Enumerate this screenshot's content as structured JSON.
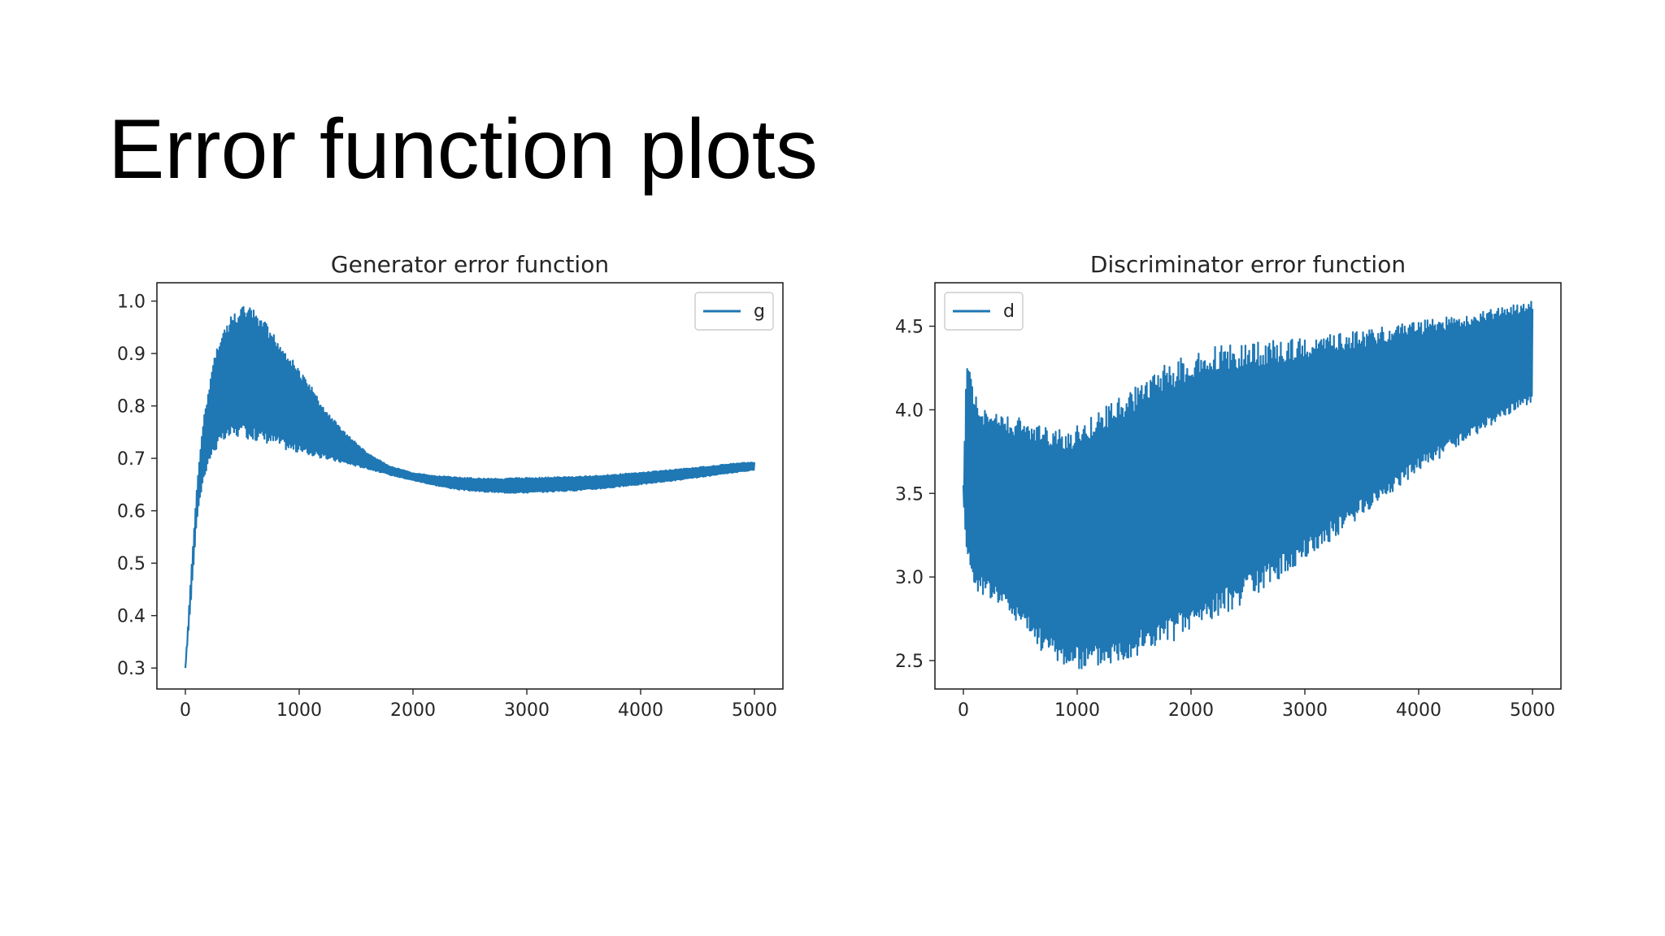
{
  "slide": {
    "title": "Error function plots"
  },
  "chart_data": [
    {
      "type": "line",
      "title": "Generator error function",
      "xlabel": "",
      "ylabel": "",
      "xlim": [
        -250,
        5250
      ],
      "ylim": [
        0.26,
        1.035
      ],
      "x_ticks": [
        "0",
        "1000",
        "2000",
        "3000",
        "4000",
        "5000"
      ],
      "y_ticks": [
        "0.3",
        "0.4",
        "0.5",
        "0.6",
        "0.7",
        "0.8",
        "0.9",
        "1.0"
      ],
      "legend_position": "upper-right",
      "grid": false,
      "series": [
        {
          "name": "g",
          "color": "#1f77b4",
          "upper_envelope": {
            "x": [
              0,
              50,
              100,
              150,
              200,
              250,
              300,
              400,
              500,
              600,
              700,
              800,
              900,
              1000,
              1100,
              1200,
              1400,
              1600,
              1800,
              2000,
              2200,
              2400,
              2600,
              2800,
              3000,
              3200,
              3400,
              3600,
              3800,
              4000,
              4200,
              4400,
              4600,
              4800,
              5000
            ],
            "y": [
              0.3,
              0.48,
              0.64,
              0.76,
              0.83,
              0.89,
              0.93,
              0.97,
              0.99,
              0.985,
              0.96,
              0.93,
              0.9,
              0.87,
              0.84,
              0.8,
              0.75,
              0.71,
              0.685,
              0.672,
              0.667,
              0.664,
              0.662,
              0.662,
              0.663,
              0.664,
              0.665,
              0.667,
              0.67,
              0.673,
              0.677,
              0.681,
              0.685,
              0.69,
              0.693
            ]
          },
          "lower_envelope": {
            "x": [
              0,
              50,
              100,
              150,
              200,
              250,
              300,
              400,
              500,
              600,
              700,
              800,
              900,
              1000,
              1100,
              1200,
              1400,
              1600,
              1800,
              2000,
              2200,
              2400,
              2600,
              2800,
              3000,
              3200,
              3400,
              3600,
              3800,
              4000,
              4200,
              4400,
              4600,
              4800,
              5000
            ],
            "y": [
              0.3,
              0.43,
              0.58,
              0.65,
              0.69,
              0.71,
              0.725,
              0.74,
              0.74,
              0.735,
              0.73,
              0.725,
              0.715,
              0.71,
              0.705,
              0.7,
              0.69,
              0.68,
              0.668,
              0.658,
              0.648,
              0.64,
              0.636,
              0.634,
              0.634,
              0.636,
              0.638,
              0.641,
              0.645,
              0.65,
              0.655,
              0.66,
              0.666,
              0.672,
              0.678
            ]
          }
        }
      ]
    },
    {
      "type": "line",
      "title": "Discriminator error function",
      "xlabel": "",
      "ylabel": "",
      "xlim": [
        -250,
        5250
      ],
      "ylim": [
        2.33,
        4.76
      ],
      "x_ticks": [
        "0",
        "1000",
        "2000",
        "3000",
        "4000",
        "5000"
      ],
      "y_ticks": [
        "2.5",
        "3.0",
        "3.5",
        "4.0",
        "4.5"
      ],
      "legend_position": "upper-left",
      "grid": false,
      "series": [
        {
          "name": "d",
          "color": "#1f77b4",
          "upper_envelope": {
            "x": [
              0,
              30,
              80,
              150,
              300,
              500,
              700,
              900,
              1000,
              1200,
              1500,
              1800,
              2000,
              2200,
              2500,
              3000,
              3500,
              4000,
              4500,
              5000
            ],
            "y": [
              3.55,
              4.35,
              4.15,
              4.0,
              3.98,
              3.95,
              3.9,
              3.88,
              3.92,
              4.0,
              4.15,
              4.28,
              4.33,
              4.38,
              4.4,
              4.43,
              4.48,
              4.53,
              4.58,
              4.65
            ]
          },
          "lower_envelope": {
            "x": [
              0,
              30,
              80,
              150,
              300,
              500,
              700,
              900,
              1000,
              1200,
              1500,
              1800,
              2000,
              2500,
              3000,
              3500,
              4000,
              4500,
              5000
            ],
            "y": [
              3.45,
              3.15,
              2.95,
              2.9,
              2.85,
              2.7,
              2.55,
              2.46,
              2.44,
              2.46,
              2.52,
              2.6,
              2.67,
              2.86,
              3.1,
              3.36,
              3.63,
              3.85,
              4.05
            ]
          }
        }
      ]
    }
  ]
}
